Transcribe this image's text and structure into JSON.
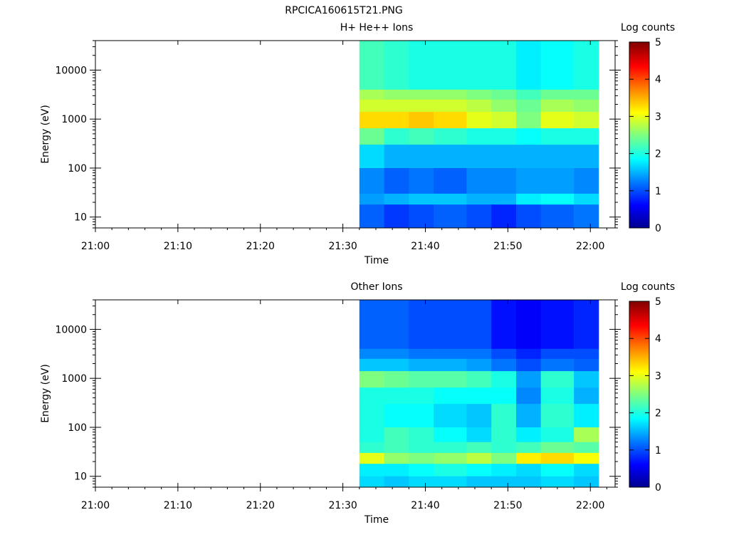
{
  "figure": {
    "title": "RPCICA160615T21.PNG"
  },
  "colors": {
    "colormap": [
      "#00008f",
      "#0000ff",
      "#007fff",
      "#00ffff",
      "#7fff7f",
      "#ffff00",
      "#ff7f00",
      "#ff0000",
      "#7f0000"
    ],
    "axes": "#000000",
    "background": "#ffffff"
  },
  "chart_data": [
    {
      "type": "heatmap",
      "title": "H+ He++ Ions",
      "xlabel": "Time",
      "ylabel": "Energy (eV)",
      "xlim": [
        "21:00",
        "22:03"
      ],
      "x_ticks": [
        "21:00",
        "21:10",
        "21:20",
        "21:30",
        "21:40",
        "21:50",
        "22:00"
      ],
      "y_scale": "log",
      "ylim": [
        6,
        40000
      ],
      "y_ticks": [
        "10",
        "100",
        "1000",
        "10000"
      ],
      "colorbar": {
        "label": "Log counts",
        "range": [
          0,
          5
        ],
        "ticks": [
          "0",
          "1",
          "2",
          "3",
          "4",
          "5"
        ]
      },
      "time_bins": [
        "21:32",
        "21:35",
        "21:38",
        "21:41",
        "21:45",
        "21:48",
        "21:51",
        "21:54",
        "21:58",
        "22:01"
      ],
      "energy_bands": [
        {
          "range": [
            4000,
            40000
          ],
          "log_counts": [
            2.2,
            2.1,
            2.0,
            2.0,
            2.0,
            2.0,
            1.8,
            1.9,
            2.0
          ]
        },
        {
          "range": [
            2500,
            4000
          ],
          "log_counts": [
            2.7,
            2.6,
            2.6,
            2.6,
            2.5,
            2.4,
            2.2,
            2.4,
            2.4
          ]
        },
        {
          "range": [
            1400,
            2500
          ],
          "log_counts": [
            2.9,
            2.9,
            2.9,
            2.9,
            2.8,
            2.6,
            2.4,
            2.7,
            2.6
          ]
        },
        {
          "range": [
            650,
            1400
          ],
          "log_counts": [
            3.3,
            3.3,
            3.4,
            3.3,
            3.0,
            2.9,
            2.5,
            3.0,
            2.9
          ]
        },
        {
          "range": [
            300,
            650
          ],
          "log_counts": [
            2.4,
            2.1,
            2.2,
            2.1,
            2.0,
            2.0,
            1.9,
            2.0,
            2.0
          ]
        },
        {
          "range": [
            100,
            300
          ],
          "log_counts": [
            1.7,
            1.5,
            1.5,
            1.5,
            1.5,
            1.5,
            1.5,
            1.5,
            1.5
          ]
        },
        {
          "range": [
            30,
            100
          ],
          "log_counts": [
            1.3,
            1.1,
            1.2,
            1.1,
            1.3,
            1.3,
            1.4,
            1.4,
            1.3
          ]
        },
        {
          "range": [
            18,
            30
          ],
          "log_counts": [
            1.4,
            1.5,
            1.6,
            1.6,
            1.5,
            1.5,
            1.8,
            1.9,
            1.7
          ]
        },
        {
          "range": [
            6,
            18
          ],
          "log_counts": [
            1.1,
            0.9,
            1.0,
            1.1,
            1.0,
            0.8,
            1.0,
            1.1,
            1.2
          ]
        }
      ]
    },
    {
      "type": "heatmap",
      "title": "Other Ions",
      "xlabel": "Time",
      "ylabel": "Energy (eV)",
      "xlim": [
        "21:00",
        "22:03"
      ],
      "x_ticks": [
        "21:00",
        "21:10",
        "21:20",
        "21:30",
        "21:40",
        "21:50",
        "22:00"
      ],
      "y_scale": "log",
      "ylim": [
        6,
        40000
      ],
      "y_ticks": [
        "10",
        "100",
        "1000",
        "10000"
      ],
      "colorbar": {
        "label": "Log counts",
        "range": [
          0,
          5
        ],
        "ticks": [
          "0",
          "1",
          "2",
          "3",
          "4",
          "5"
        ]
      },
      "time_bins": [
        "21:32",
        "21:35",
        "21:38",
        "21:41",
        "21:45",
        "21:48",
        "21:51",
        "21:54",
        "21:58",
        "22:01"
      ],
      "energy_bands": [
        {
          "range": [
            4000,
            40000
          ],
          "log_counts": [
            1.1,
            1.1,
            1.0,
            1.0,
            1.0,
            0.7,
            0.6,
            0.7,
            0.8
          ]
        },
        {
          "range": [
            2500,
            4000
          ],
          "log_counts": [
            1.3,
            1.3,
            1.2,
            1.2,
            1.2,
            1.0,
            0.8,
            1.0,
            1.0
          ]
        },
        {
          "range": [
            1400,
            2500
          ],
          "log_counts": [
            1.6,
            1.6,
            1.5,
            1.5,
            1.4,
            1.2,
            1.0,
            1.2,
            1.1
          ]
        },
        {
          "range": [
            650,
            1400
          ],
          "log_counts": [
            2.5,
            2.4,
            2.3,
            2.3,
            2.2,
            2.0,
            1.4,
            2.1,
            1.6
          ]
        },
        {
          "range": [
            300,
            650
          ],
          "log_counts": [
            2.0,
            2.0,
            2.0,
            1.9,
            1.9,
            1.9,
            1.3,
            2.0,
            1.5
          ]
        },
        {
          "range": [
            100,
            300
          ],
          "log_counts": [
            2.0,
            1.9,
            1.9,
            1.7,
            1.6,
            2.1,
            1.5,
            2.1,
            1.8
          ]
        },
        {
          "range": [
            50,
            100
          ],
          "log_counts": [
            2.0,
            2.2,
            2.1,
            1.9,
            1.7,
            2.1,
            1.8,
            2.0,
            2.7
          ]
        },
        {
          "range": [
            30,
            50
          ],
          "log_counts": [
            2.1,
            2.2,
            2.1,
            2.1,
            2.2,
            2.1,
            2.2,
            2.4,
            2.3
          ]
        },
        {
          "range": [
            18,
            30
          ],
          "log_counts": [
            3.0,
            2.6,
            2.5,
            2.6,
            2.8,
            2.5,
            3.2,
            3.3,
            3.1
          ]
        },
        {
          "range": [
            10,
            18
          ],
          "log_counts": [
            1.8,
            1.8,
            1.9,
            2.0,
            1.9,
            1.8,
            1.7,
            1.9,
            1.7
          ]
        },
        {
          "range": [
            6,
            10
          ],
          "log_counts": [
            1.7,
            1.6,
            1.7,
            1.7,
            1.6,
            1.6,
            1.6,
            1.7,
            1.6
          ]
        }
      ]
    }
  ]
}
